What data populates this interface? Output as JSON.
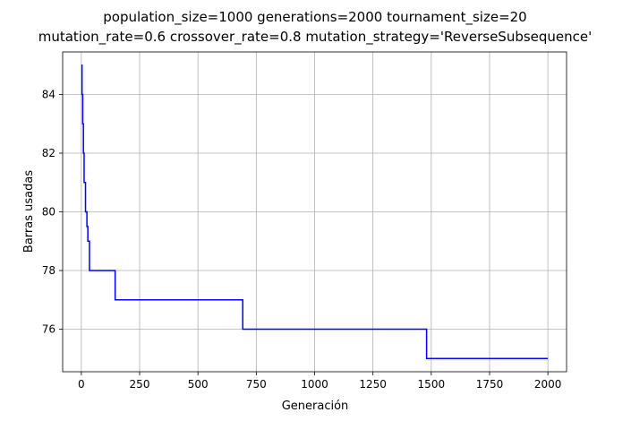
{
  "chart_data": {
    "type": "line",
    "title_lines": [
      "population_size=1000 generations=2000 tournament_size=20",
      "mutation_rate=0.6 crossover_rate=0.8 mutation_strategy='ReverseSubsequence'"
    ],
    "xlabel": "Generación",
    "ylabel": "Barras usadas",
    "xlim": [
      -80,
      2080
    ],
    "ylim": [
      74.55,
      85.45
    ],
    "xticks": [
      0,
      250,
      500,
      750,
      1000,
      1250,
      1500,
      1750,
      2000
    ],
    "yticks": [
      76,
      78,
      80,
      82,
      84
    ],
    "grid": true,
    "line_color": "#0000ff",
    "grid_color": "#b0b0b0",
    "series": [
      {
        "step": "post",
        "x": [
          0,
          3,
          6,
          9,
          12,
          18,
          24,
          28,
          35,
          145,
          692,
          1480,
          2000
        ],
        "y": [
          85,
          84,
          83,
          82,
          81,
          80,
          79.5,
          79,
          78,
          77,
          76,
          75,
          75
        ]
      }
    ]
  }
}
